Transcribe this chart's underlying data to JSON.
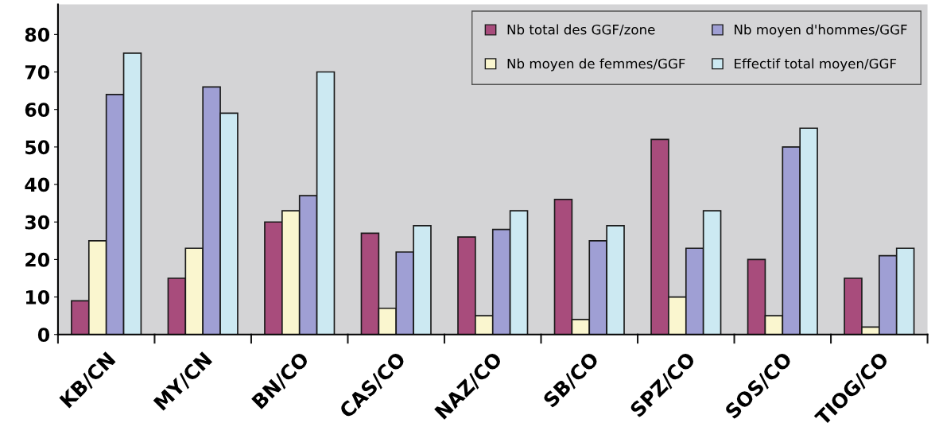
{
  "chart_data": {
    "type": "bar",
    "categories": [
      "KB/CN",
      "MY/CN",
      "BN/CO",
      "CAS/CO",
      "NAZ/CO",
      "SB/CO",
      "SPZ/CO",
      "SOS/CO",
      "TIOG/CO"
    ],
    "series": [
      {
        "name": "Nb total des GGF/zone",
        "color": "#a84c7c",
        "values": [
          9,
          15,
          30,
          27,
          26,
          36,
          52,
          20,
          15
        ]
      },
      {
        "name": "Nb moyen de femmes/GGF",
        "color": "#faf6cf",
        "values": [
          25,
          23,
          33,
          7,
          5,
          4,
          10,
          5,
          2
        ]
      },
      {
        "name": "Nb moyen d'hommes/GGF",
        "color": "#9f9fd4",
        "values": [
          64,
          66,
          37,
          22,
          28,
          25,
          23,
          50,
          21
        ]
      },
      {
        "name": "Effectif total moyen/GGF",
        "color": "#cce9f2",
        "values": [
          75,
          59,
          70,
          29,
          33,
          29,
          33,
          55,
          23
        ]
      }
    ],
    "ylim": [
      0,
      88
    ],
    "yticks": [
      0,
      10,
      20,
      30,
      40,
      50,
      60,
      70,
      80
    ],
    "grid": false,
    "legend": "top right"
  }
}
